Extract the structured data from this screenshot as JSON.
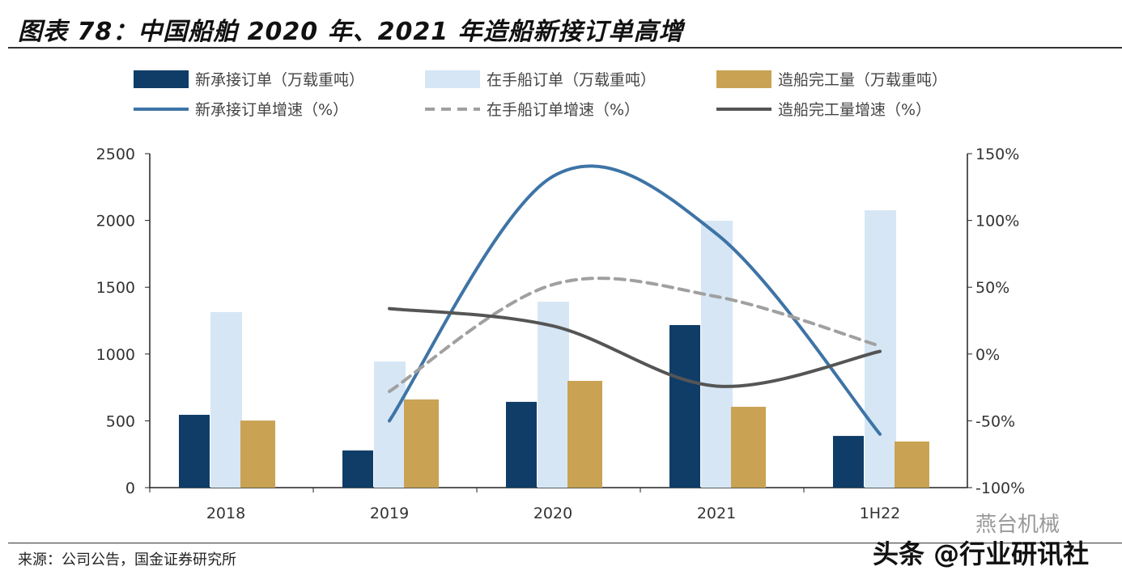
{
  "title": "图表 78：中国船舶 2020 年、2021 年造船新接订单高增",
  "source": "来源：公司公告，国金证券研究所",
  "watermark": [
    "燕台机械",
    "头条 @行业研讯社"
  ],
  "chart_data": {
    "type": "bar",
    "categories": [
      "2018",
      "2019",
      "2020",
      "2021",
      "1H22"
    ],
    "y_left": {
      "range": [
        0,
        2500
      ],
      "ticks": [
        "0",
        "500",
        "1000",
        "1500",
        "2000",
        "2500"
      ]
    },
    "y_right": {
      "range": [
        -100,
        150
      ],
      "ticks": [
        "-100%",
        "-50%",
        "0%",
        "50%",
        "100%",
        "150%"
      ]
    },
    "grid": false,
    "legend": "top",
    "series": [
      {
        "name": "新承接订单（万载重吨）",
        "type": "bar",
        "axis": "left",
        "color": "#0f3d67",
        "values": [
          545,
          278,
          642,
          1217,
          387
        ]
      },
      {
        "name": "在手船订单（万载重吨）",
        "type": "bar",
        "axis": "left",
        "color": "#d6e6f5",
        "values": [
          1314,
          944,
          1392,
          1998,
          2076
        ]
      },
      {
        "name": "造船完工量（万载重吨）",
        "type": "bar",
        "axis": "left",
        "color": "#c9a253",
        "values": [
          502,
          660,
          799,
          605,
          345
        ]
      },
      {
        "name": "新承接订单增速（%）",
        "type": "line",
        "axis": "right",
        "color": "#3e74a6",
        "dash": false,
        "values": [
          null,
          -50,
          133,
          90,
          -60
        ]
      },
      {
        "name": "在手船订单增速（%）",
        "type": "line",
        "axis": "right",
        "color": "#a0a0a0",
        "dash": true,
        "values": [
          null,
          -28,
          52,
          43,
          6
        ]
      },
      {
        "name": "造船完工量增速（%）",
        "type": "line",
        "axis": "right",
        "color": "#555555",
        "dash": false,
        "values": [
          null,
          34,
          21,
          -24,
          2
        ]
      }
    ]
  }
}
